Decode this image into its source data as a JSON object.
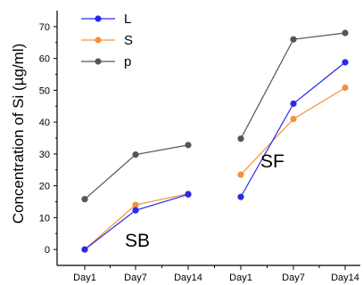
{
  "chart_data": {
    "type": "line",
    "ylabel": "Concentration of Si (µg/ml)",
    "xlabel": "",
    "ylim": [
      -5,
      75
    ],
    "yticks": [
      0,
      10,
      20,
      30,
      40,
      50,
      60,
      70
    ],
    "grid": false,
    "legend": "top-left",
    "groups": [
      {
        "label": "SB",
        "categories": [
          "Day1",
          "Day7",
          "Day14"
        ],
        "series": [
          {
            "name": "L",
            "color": "#2a2ae8",
            "values": [
              0,
              12.3,
              17.3
            ]
          },
          {
            "name": "S",
            "color": "#f5903d",
            "values": [
              0,
              14.0,
              17.5
            ]
          },
          {
            "name": "p",
            "color": "#555555",
            "values": [
              15.8,
              29.8,
              32.8
            ]
          }
        ]
      },
      {
        "label": "SF",
        "categories": [
          "Day1",
          "Day7",
          "Day14"
        ],
        "series": [
          {
            "name": "L",
            "color": "#2a2ae8",
            "values": [
              16.5,
              45.8,
              58.8
            ]
          },
          {
            "name": "S",
            "color": "#f5903d",
            "values": [
              23.5,
              41.0,
              50.8
            ]
          },
          {
            "name": "p",
            "color": "#555555",
            "values": [
              34.8,
              66.0,
              68.0
            ]
          }
        ]
      }
    ]
  }
}
